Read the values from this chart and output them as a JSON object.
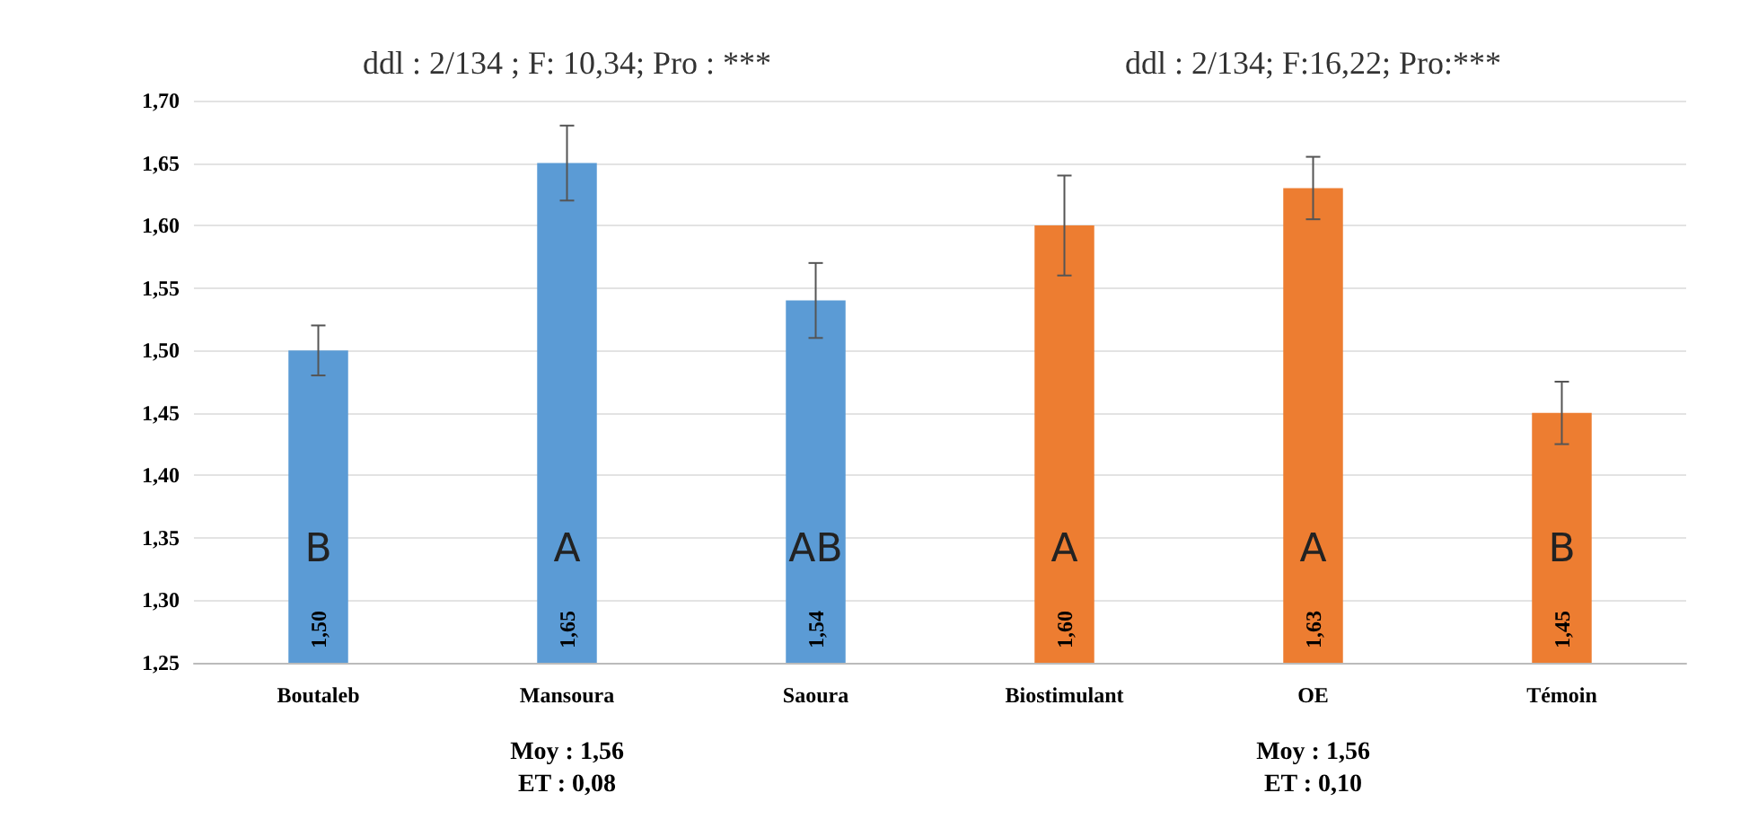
{
  "chart_data": {
    "type": "bar",
    "categories": [
      "Boutaleb",
      "Mansoura",
      "Saoura",
      "Biostimulant",
      "OE",
      "Témoin"
    ],
    "values": [
      1.5,
      1.65,
      1.54,
      1.6,
      1.63,
      1.45
    ],
    "colors": [
      "#5b9bd5",
      "#5b9bd5",
      "#5b9bd5",
      "#ed7d31",
      "#ed7d31",
      "#ed7d31"
    ],
    "errors": [
      0.02,
      0.03,
      0.03,
      0.04,
      0.025,
      0.025
    ],
    "value_labels": [
      "1,50",
      "1,65",
      "1,54",
      "1,60",
      "1,63",
      "1,45"
    ],
    "ylim": [
      1.25,
      1.7
    ],
    "yticks": [
      {
        "value": 1.25,
        "label": "1,25"
      },
      {
        "value": 1.3,
        "label": "1,30"
      },
      {
        "value": 1.35,
        "label": "1,35"
      },
      {
        "value": 1.4,
        "label": "1,40"
      },
      {
        "value": 1.45,
        "label": "1,45"
      },
      {
        "value": 1.5,
        "label": "1,50"
      },
      {
        "value": 1.55,
        "label": "1,55"
      },
      {
        "value": 1.6,
        "label": "1,60"
      },
      {
        "value": 1.65,
        "label": "1,65"
      },
      {
        "value": 1.7,
        "label": "1,70"
      }
    ],
    "grid": "y",
    "annotations": [
      "ddl : 2/134 ; F: 10,34; Pro : ***",
      "ddl : 2/134; F:16,22; Pro:***",
      "Moy : 1,56\nET : 0,08",
      "Moy : 1,56\nET : 0,10",
      "B",
      "A",
      "AB",
      "A",
      "A",
      "B"
    ]
  }
}
